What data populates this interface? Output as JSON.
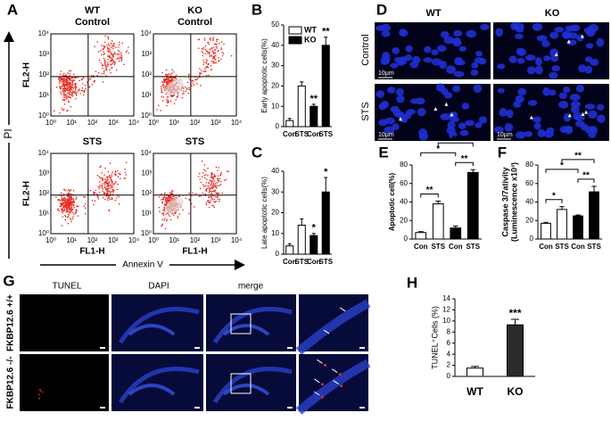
{
  "figure": {
    "flow": {
      "panel": "A",
      "columns": [
        {
          "genotype": "WT",
          "condition": "Control"
        },
        {
          "genotype": "KO",
          "condition": "Control"
        }
      ],
      "treated": "STS",
      "y_label": "FL2-H",
      "x_label": "FL1-H",
      "y_axis": "PI",
      "x_axis": "Annexin V",
      "ticks": [
        "10⁰",
        "10¹",
        "10²",
        "10³",
        "10⁴"
      ]
    },
    "microscopy": {
      "panel": "D",
      "columns": [
        "WT",
        "KO"
      ],
      "rows": [
        "Control",
        "STS"
      ],
      "scale": "10μm"
    },
    "tissue": {
      "panel": "G",
      "columns": [
        "TUNEL",
        "DAPI",
        "merge"
      ],
      "rows": [
        "FKBP12.6 +/+",
        "FKBP12.6 -/-"
      ]
    }
  },
  "chart_data": [
    {
      "type": "bar",
      "panel": "B",
      "ylabel": [
        "Early apoptotic cells(%)"
      ],
      "categories": [
        "Con",
        "STS",
        "Con",
        "STS"
      ],
      "values": [
        3,
        20,
        10,
        40
      ],
      "errors": [
        1,
        2,
        1,
        4
      ],
      "colors": [
        "#ffffff",
        "#ffffff",
        "#000000",
        "#000000"
      ],
      "significance": [
        null,
        null,
        "**",
        "**"
      ],
      "ylim": [
        0,
        50
      ],
      "yticks": [
        0,
        10,
        20,
        30,
        40,
        50
      ],
      "legend": [
        {
          "name": "WT",
          "color": "#ffffff"
        },
        {
          "name": "KO",
          "color": "#000000"
        }
      ]
    },
    {
      "type": "bar",
      "panel": "C",
      "ylabel": [
        "Late apoptotic cells(%)"
      ],
      "categories": [
        "Con",
        "STS",
        "Con",
        "STS"
      ],
      "values": [
        4,
        14,
        9,
        30
      ],
      "errors": [
        1,
        3,
        1,
        7
      ],
      "colors": [
        "#ffffff",
        "#ffffff",
        "#000000",
        "#000000"
      ],
      "significance": [
        null,
        null,
        "*",
        "*"
      ],
      "ylim": [
        0,
        40
      ],
      "yticks": [
        0,
        10,
        20,
        30,
        40
      ]
    },
    {
      "type": "bar",
      "panel": "E",
      "ylabel": [
        "Apoptotic cell(%)"
      ],
      "categories": [
        "Con",
        "STS",
        "Con",
        "STS"
      ],
      "values": [
        7,
        38,
        12,
        72
      ],
      "errors": [
        1,
        3,
        2,
        3
      ],
      "colors": [
        "#ffffff",
        "#ffffff",
        "#000000",
        "#000000"
      ],
      "comparisons": [
        {
          "pair": [
            0,
            1
          ],
          "label": "**"
        },
        {
          "pair": [
            2,
            3
          ],
          "label": "**"
        },
        {
          "pair": [
            0,
            2
          ],
          "label": "*"
        },
        {
          "pair": [
            1,
            3
          ],
          "label": "**"
        }
      ],
      "ylim": [
        0,
        80
      ],
      "yticks": [
        0,
        20,
        40,
        60,
        80
      ]
    },
    {
      "type": "bar",
      "panel": "F",
      "ylabel": [
        "Caspase 3/7ativity",
        "(Luminescence x10³)"
      ],
      "categories": [
        "Con",
        "STS",
        "Con",
        "STS"
      ],
      "values": [
        17,
        32,
        25,
        51
      ],
      "errors": [
        1,
        3,
        1,
        6
      ],
      "colors": [
        "#ffffff",
        "#ffffff",
        "#000000",
        "#000000"
      ],
      "comparisons": [
        {
          "pair": [
            0,
            1
          ],
          "label": "*"
        },
        {
          "pair": [
            2,
            3
          ],
          "label": "**"
        },
        {
          "pair": [
            0,
            2
          ],
          "label": "*"
        },
        {
          "pair": [
            1,
            3
          ],
          "label": "**"
        }
      ],
      "ylim": [
        0,
        80
      ],
      "yticks": [
        0,
        20,
        40,
        60,
        80
      ]
    },
    {
      "type": "bar",
      "panel": "H",
      "ylabel": [
        "TUNEL⁺Cells (%)"
      ],
      "categories": [
        "WT",
        "KO"
      ],
      "values": [
        1.5,
        9.3
      ],
      "errors": [
        0.3,
        1
      ],
      "colors": [
        "#ffffff",
        "#2b2b2b"
      ],
      "significance": [
        null,
        "***"
      ],
      "ylim": [
        0,
        14
      ],
      "yticks": [
        0,
        2,
        4,
        6,
        8,
        10,
        12,
        14
      ]
    }
  ]
}
